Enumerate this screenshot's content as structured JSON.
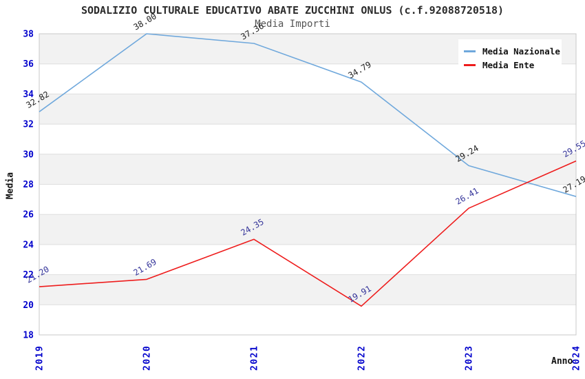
{
  "title": "SODALIZIO CULTURALE EDUCATIVO ABATE ZUCCHINI ONLUS (c.f.92088720518)",
  "subtitle": "Media Importi",
  "axes": {
    "y_label": "Media",
    "x_label": "Anno"
  },
  "legend": {
    "items": [
      {
        "label": "Media Nazionale",
        "color": "#6fa8dc"
      },
      {
        "label": "Media Ente",
        "color": "#ee1c1c"
      }
    ]
  },
  "colors": {
    "tick_label": "#0000cc",
    "gridline": "#dedede",
    "plot_border": "#c8c8c8",
    "band_gray": "#f2f2f2",
    "band_white": "#ffffff"
  },
  "chart_data": {
    "type": "line",
    "title": "Media Importi",
    "xlabel": "Anno",
    "ylabel": "Media",
    "categories": [
      "2019",
      "2020",
      "2021",
      "2022",
      "2023",
      "2024"
    ],
    "series": [
      {
        "name": "Media Nazionale",
        "color": "#6fa8dc",
        "label_color": "#222222",
        "values": [
          32.82,
          38.0,
          37.36,
          34.79,
          29.24,
          27.19
        ]
      },
      {
        "name": "Media Ente",
        "color": "#ee1c1c",
        "label_color": "#333399",
        "values": [
          21.2,
          21.69,
          24.35,
          19.91,
          26.41,
          29.55
        ]
      }
    ],
    "ylim": [
      18,
      38
    ],
    "y_ticks": [
      18,
      20,
      22,
      24,
      26,
      28,
      30,
      32,
      34,
      36,
      38
    ],
    "grid": true,
    "banded_background": true,
    "legend_position": "top-right",
    "point_labels_decimals": 2
  }
}
